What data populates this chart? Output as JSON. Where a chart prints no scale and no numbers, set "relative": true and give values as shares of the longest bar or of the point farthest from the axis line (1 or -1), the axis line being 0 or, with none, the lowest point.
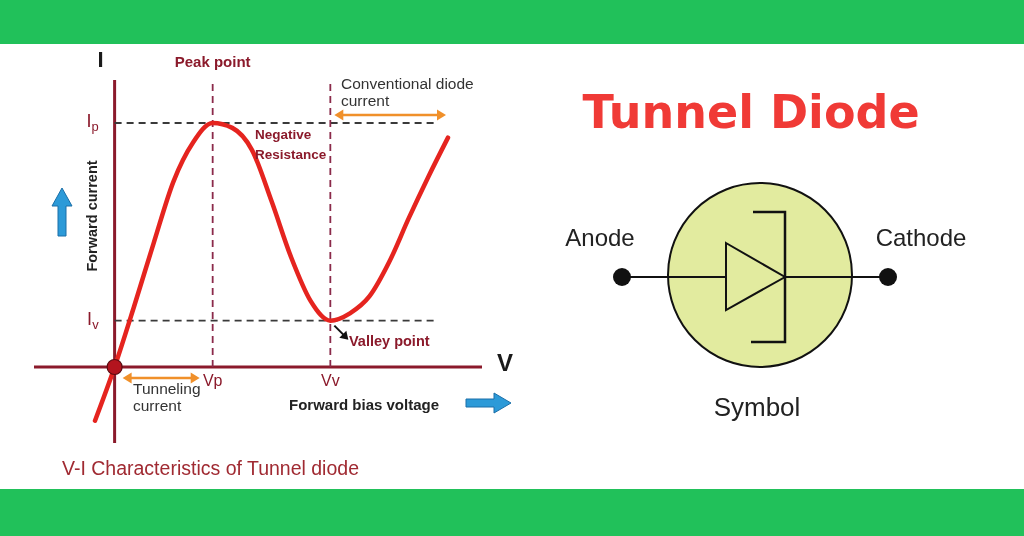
{
  "chart_data": [
    {
      "type": "line",
      "title": "V-I Characteristics of Tunnel diode",
      "xlabel": "V",
      "ylabel": "I",
      "relative": true,
      "categories": [
        null,
        null,
        null,
        null,
        null,
        null,
        "Vp",
        null,
        null,
        null,
        null,
        null,
        "Vv",
        null,
        null,
        null,
        null,
        null,
        null
      ],
      "series": [
        {
          "type": "line",
          "color": "#e5241f",
          "values": [
            -0.22,
            0,
            0.25,
            0.51,
            0.76,
            0.92,
            1,
            0.98,
            0.89,
            0.68,
            0.45,
            0.27,
            0.19,
            0.22,
            0.29,
            0.43,
            0.61,
            0.78,
            0.94
          ]
        },
        {
          "type": "scatter",
          "color": "#b3141e",
          "values": [
            null,
            0,
            null,
            null,
            null,
            null,
            null,
            null,
            null,
            null,
            null,
            null,
            null,
            null,
            null,
            null,
            null,
            null,
            null
          ]
        }
      ],
      "ref_lines": [
        {
          "axis": "y",
          "value": 1,
          "label": "I$_{p}$",
          "color": "#3a3a3a",
          "line_style": "dashed"
        },
        {
          "axis": "y",
          "value": 0.19,
          "label": "I$_{v}$",
          "color": "#3a3a3a",
          "line_style": "dashed"
        },
        {
          "axis": "x",
          "value": "Vp",
          "label": "Peak point",
          "color": "#8b2a4a",
          "line_style": "dashed"
        },
        {
          "axis": "x",
          "value": "Vv",
          "label": null,
          "color": "#8b2a4a",
          "line_style": "dashed"
        }
      ],
      "annotations": [
        "Negative Resistance",
        "Conventional diode current",
        {
          "text": "Valley point",
          "x": "Vv",
          "y": 0.19
        },
        "Tunneling current",
        "Forward current",
        "Forward bias voltage"
      ]
    },
    {
      "type": "other",
      "title": "Tunnel Diode",
      "annotations": [
        "Anode",
        "Cathode",
        "Symbol"
      ]
    }
  ]
}
